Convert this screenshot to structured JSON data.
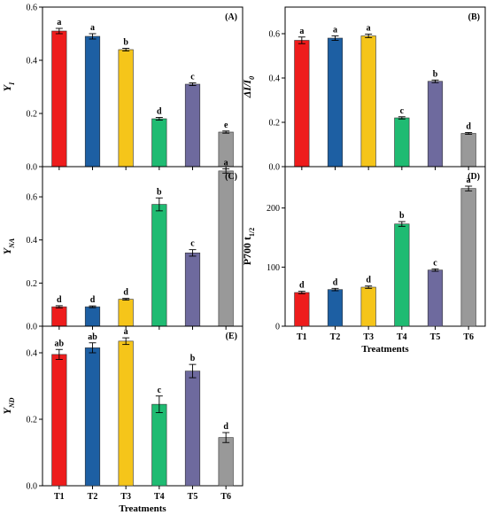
{
  "chart_data": [
    {
      "id": "A",
      "type": "bar",
      "panel_label": "(A)",
      "ylabel": "Y",
      "ylabel_sub": "I",
      "xlabel": "",
      "categories": [
        "T1",
        "T2",
        "T3",
        "T4",
        "T5",
        "T6"
      ],
      "values": [
        0.51,
        0.49,
        0.44,
        0.18,
        0.31,
        0.13
      ],
      "errors": [
        0.01,
        0.01,
        0.005,
        0.005,
        0.005,
        0.004
      ],
      "letters": [
        "a",
        "a",
        "b",
        "d",
        "c",
        "e"
      ],
      "ylim": [
        0,
        0.6
      ],
      "yticks": [
        "0.0",
        "0.2",
        "0.4",
        "0.6"
      ],
      "show_x_tick_labels": false
    },
    {
      "id": "B",
      "type": "bar",
      "panel_label": "(B)",
      "ylabel": "ΔI/I",
      "ylabel_sub": "0",
      "xlabel": "",
      "categories": [
        "T1",
        "T2",
        "T3",
        "T4",
        "T5",
        "T6"
      ],
      "values": [
        0.57,
        0.58,
        0.59,
        0.22,
        0.385,
        0.15
      ],
      "errors": [
        0.015,
        0.01,
        0.008,
        0.005,
        0.006,
        0.004
      ],
      "letters": [
        "a",
        "a",
        "a",
        "c",
        "b",
        "d"
      ],
      "ylim": [
        0,
        0.72
      ],
      "yticks": [
        "0.0",
        "0.2",
        "0.4",
        "0.6"
      ],
      "show_x_tick_labels": false
    },
    {
      "id": "C",
      "type": "bar",
      "panel_label": "(C)",
      "ylabel": "Y",
      "ylabel_sub": "NA",
      "xlabel": "",
      "categories": [
        "T1",
        "T2",
        "T3",
        "T4",
        "T5",
        "T6"
      ],
      "values": [
        0.09,
        0.09,
        0.125,
        0.565,
        0.34,
        0.72
      ],
      "errors": [
        0.005,
        0.004,
        0.004,
        0.03,
        0.015,
        0.01
      ],
      "letters": [
        "d",
        "d",
        "d",
        "b",
        "c",
        "a"
      ],
      "ylim": [
        0,
        0.74
      ],
      "yticks": [
        "0.0",
        "0.2",
        "0.4",
        "0.6"
      ],
      "show_x_tick_labels": false
    },
    {
      "id": "D",
      "type": "bar",
      "panel_label": "(D)",
      "ylabel": "P700 t",
      "ylabel_sub": "1/2",
      "xlabel": "Treatments",
      "categories": [
        "T1",
        "T2",
        "T3",
        "T4",
        "T5",
        "T6"
      ],
      "values": [
        57,
        62,
        66,
        173,
        95,
        233
      ],
      "errors": [
        2,
        2,
        2,
        4,
        2,
        4
      ],
      "letters": [
        "d",
        "d",
        "d",
        "b",
        "c",
        "a"
      ],
      "ylim": [
        0,
        270
      ],
      "yticks": [
        "0",
        "100",
        "200"
      ],
      "show_x_tick_labels": true
    },
    {
      "id": "E",
      "type": "bar",
      "panel_label": "(E)",
      "ylabel": "Y",
      "ylabel_sub": "ND",
      "xlabel": "Treatments",
      "categories": [
        "T1",
        "T2",
        "T3",
        "T4",
        "T5",
        "T6"
      ],
      "values": [
        0.395,
        0.415,
        0.435,
        0.245,
        0.345,
        0.145
      ],
      "errors": [
        0.015,
        0.015,
        0.01,
        0.025,
        0.02,
        0.015
      ],
      "letters": [
        "ab",
        "ab",
        "a",
        "c",
        "b",
        "d"
      ],
      "ylim": [
        0,
        0.48
      ],
      "yticks": [
        "0.0",
        "0.2",
        "0.4"
      ],
      "show_x_tick_labels": true
    }
  ],
  "colors": {
    "T1": "#ee1c1c",
    "T2": "#1d5fa3",
    "T3": "#f5c51a",
    "T4": "#1fbb72",
    "T5": "#6e6a9e",
    "T6": "#999999",
    "axis": "#000000"
  }
}
